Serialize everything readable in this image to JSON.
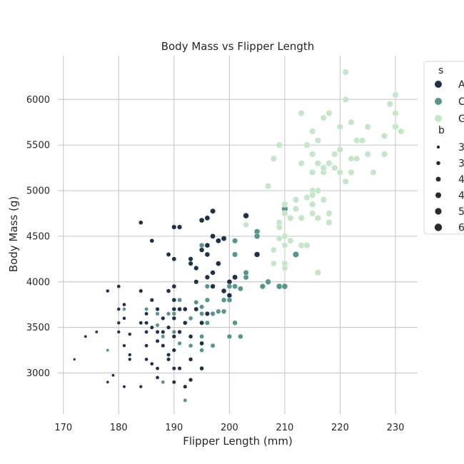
{
  "chart_data": {
    "type": "scatter",
    "title": "Body Mass vs Flipper Length",
    "xlabel": "Flipper Length (mm)",
    "ylabel": "Body Mass (g)",
    "xlim": [
      169,
      234
    ],
    "ylim": [
      2550,
      6480
    ],
    "xticks": [
      170,
      180,
      190,
      200,
      210,
      220,
      230
    ],
    "yticks": [
      3000,
      3500,
      4000,
      4500,
      5000,
      5500,
      6000
    ],
    "grid": true,
    "legend_position": "upper right, outside plot",
    "legend": {
      "hue_title": "s",
      "hue_entries": [
        {
          "label": "A",
          "color": "#21304a"
        },
        {
          "label": "C",
          "color": "#58958c"
        },
        {
          "label": "G",
          "color": "#c6e6c9"
        }
      ],
      "size_title": "b",
      "size_entries": [
        "3",
        "3",
        "4",
        "4",
        "5",
        "6"
      ]
    },
    "series": [
      {
        "color": "#21304a",
        "points": [
          [
            172,
            3150
          ],
          [
            174,
            3400
          ],
          [
            176,
            3450
          ],
          [
            178,
            2900
          ],
          [
            178,
            3900
          ],
          [
            179,
            2975
          ],
          [
            180,
            3950
          ],
          [
            180,
            3700
          ],
          [
            180,
            3550
          ],
          [
            180,
            3450
          ],
          [
            181,
            3600
          ],
          [
            181,
            3750
          ],
          [
            181,
            2850
          ],
          [
            181,
            3300
          ],
          [
            182,
            3425
          ],
          [
            182,
            3200
          ],
          [
            182,
            3150
          ],
          [
            184,
            3900
          ],
          [
            184,
            3550
          ],
          [
            184,
            2850
          ],
          [
            184,
            4650
          ],
          [
            185,
            3650
          ],
          [
            185,
            3300
          ],
          [
            185,
            3450
          ],
          [
            185,
            3150
          ],
          [
            185,
            3550
          ],
          [
            186,
            3800
          ],
          [
            186,
            4450
          ],
          [
            186,
            3500
          ],
          [
            186,
            3100
          ],
          [
            187,
            3050
          ],
          [
            187,
            3700
          ],
          [
            187,
            3450
          ],
          [
            187,
            3350
          ],
          [
            187,
            2950
          ],
          [
            188,
            3600
          ],
          [
            188,
            2900
          ],
          [
            188,
            3300
          ],
          [
            188,
            3450
          ],
          [
            189,
            3500
          ],
          [
            189,
            4300
          ],
          [
            189,
            3900
          ],
          [
            189,
            3200
          ],
          [
            189,
            3150
          ],
          [
            190,
            4250
          ],
          [
            190,
            4600
          ],
          [
            190,
            3450
          ],
          [
            190,
            3700
          ],
          [
            190,
            3800
          ],
          [
            190,
            3950
          ],
          [
            190,
            3600
          ],
          [
            190,
            3400
          ],
          [
            190,
            3250
          ],
          [
            190,
            3050
          ],
          [
            190,
            2900
          ],
          [
            191,
            4600
          ],
          [
            191,
            3800
          ],
          [
            191,
            3700
          ],
          [
            191,
            3450
          ],
          [
            191,
            3050
          ],
          [
            192,
            3550
          ],
          [
            192,
            3700
          ],
          [
            192,
            2850
          ],
          [
            193,
            4200
          ],
          [
            193,
            4250
          ],
          [
            193,
            3400
          ],
          [
            193,
            3150
          ],
          [
            193,
            2925
          ],
          [
            194,
            4000
          ],
          [
            194,
            3700
          ],
          [
            194,
            4150
          ],
          [
            195,
            4675
          ],
          [
            195,
            3325
          ],
          [
            195,
            3550
          ],
          [
            195,
            4400
          ],
          [
            195,
            4350
          ],
          [
            195,
            3050
          ],
          [
            196,
            4700
          ],
          [
            196,
            4050
          ],
          [
            196,
            4300
          ],
          [
            196,
            3800
          ],
          [
            196,
            4400
          ],
          [
            196,
            3650
          ],
          [
            197,
            4775
          ],
          [
            197,
            4500
          ],
          [
            197,
            4100
          ],
          [
            197,
            3950
          ],
          [
            198,
            4450
          ],
          [
            198,
            4200
          ],
          [
            199,
            4475
          ],
          [
            199,
            3900
          ],
          [
            200,
            4000
          ],
          [
            200,
            3850
          ],
          [
            200,
            3400
          ],
          [
            201,
            4050
          ],
          [
            203,
            4725
          ],
          [
            205,
            4300
          ]
        ]
      },
      {
        "color": "#58958c",
        "points": [
          [
            178,
            3250
          ],
          [
            181,
            3700
          ],
          [
            185,
            3700
          ],
          [
            187,
            3650
          ],
          [
            187,
            3525
          ],
          [
            188,
            3400
          ],
          [
            188,
            2900
          ],
          [
            189,
            3650
          ],
          [
            190,
            3450
          ],
          [
            190,
            3650
          ],
          [
            191,
            3800
          ],
          [
            191,
            3325
          ],
          [
            192,
            2700
          ],
          [
            193,
            3600
          ],
          [
            193,
            3300
          ],
          [
            194,
            3775
          ],
          [
            195,
            3650
          ],
          [
            195,
            4400
          ],
          [
            195,
            3250
          ],
          [
            195,
            3400
          ],
          [
            195,
            3725
          ],
          [
            196,
            3550
          ],
          [
            196,
            3800
          ],
          [
            196,
            3950
          ],
          [
            197,
            3300
          ],
          [
            197,
            3650
          ],
          [
            198,
            3675
          ],
          [
            199,
            3675
          ],
          [
            199,
            3800
          ],
          [
            200,
            3400
          ],
          [
            200,
            3800
          ],
          [
            200,
            3950
          ],
          [
            201,
            3550
          ],
          [
            201,
            3950
          ],
          [
            201,
            4300
          ],
          [
            201,
            4450
          ],
          [
            202,
            3400
          ],
          [
            202,
            3925
          ],
          [
            203,
            4050
          ],
          [
            203,
            4100
          ],
          [
            205,
            4550
          ],
          [
            205,
            4500
          ],
          [
            206,
            3950
          ],
          [
            207,
            4000
          ],
          [
            209,
            3950
          ],
          [
            210,
            4800
          ],
          [
            212,
            4300
          ],
          [
            210,
            3950
          ]
        ]
      },
      {
        "color": "#c6e6c9",
        "points": [
          [
            203,
            4625
          ],
          [
            207,
            5050
          ],
          [
            208,
            5350
          ],
          [
            208,
            4200
          ],
          [
            208,
            4350
          ],
          [
            209,
            5500
          ],
          [
            209,
            4650
          ],
          [
            209,
            4600
          ],
          [
            209,
            4475
          ],
          [
            210,
            4750
          ],
          [
            210,
            4850
          ],
          [
            210,
            4500
          ],
          [
            210,
            4400
          ],
          [
            210,
            4200
          ],
          [
            210,
            4150
          ],
          [
            211,
            4700
          ],
          [
            211,
            4450
          ],
          [
            212,
            4800
          ],
          [
            212,
            4900
          ],
          [
            213,
            5850
          ],
          [
            213,
            5300
          ],
          [
            213,
            4700
          ],
          [
            213,
            4400
          ],
          [
            214,
            5500
          ],
          [
            214,
            4925
          ],
          [
            214,
            4400
          ],
          [
            215,
            5650
          ],
          [
            215,
            5400
          ],
          [
            215,
            5200
          ],
          [
            215,
            4850
          ],
          [
            215,
            5000
          ],
          [
            215,
            4750
          ],
          [
            215,
            4950
          ],
          [
            216,
            5550
          ],
          [
            216,
            5300
          ],
          [
            216,
            5000
          ],
          [
            216,
            4700
          ],
          [
            216,
            4100
          ],
          [
            217,
            5800
          ],
          [
            217,
            5200
          ],
          [
            217,
            4900
          ],
          [
            217,
            5250
          ],
          [
            218,
            5850
          ],
          [
            218,
            5300
          ],
          [
            218,
            4750
          ],
          [
            218,
            4650
          ],
          [
            219,
            5250
          ],
          [
            219,
            5400
          ],
          [
            220,
            5700
          ],
          [
            220,
            5450
          ],
          [
            220,
            5200
          ],
          [
            221,
            6300
          ],
          [
            221,
            6000
          ],
          [
            221,
            5100
          ],
          [
            222,
            5750
          ],
          [
            222,
            5350
          ],
          [
            222,
            5200
          ],
          [
            223,
            5550
          ],
          [
            223,
            5350
          ],
          [
            224,
            5550
          ],
          [
            225,
            5700
          ],
          [
            225,
            5400
          ],
          [
            226,
            5200
          ],
          [
            228,
            5600
          ],
          [
            228,
            5400
          ],
          [
            229,
            5950
          ],
          [
            230,
            6050
          ],
          [
            230,
            5850
          ],
          [
            230,
            5700
          ],
          [
            231,
            5650
          ]
        ]
      }
    ]
  }
}
